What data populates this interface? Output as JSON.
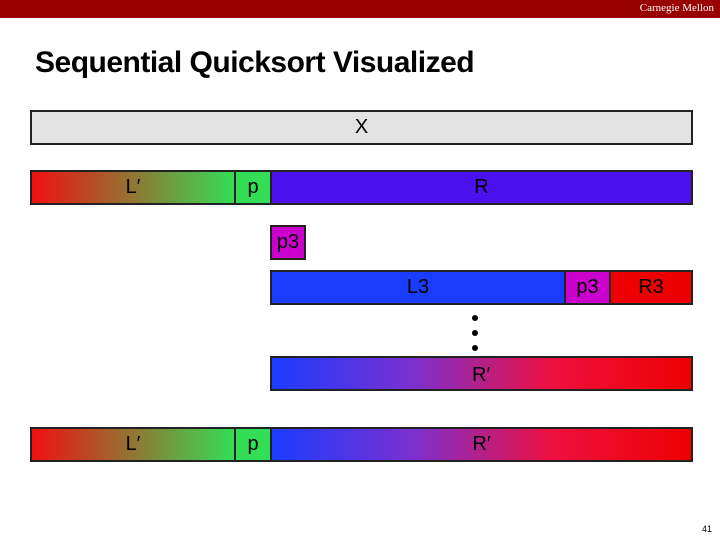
{
  "header": {
    "org": "Carnegie Mellon"
  },
  "title": "Sequential Quicksort Visualized",
  "rows": [
    {
      "segments": [
        "X"
      ]
    },
    {
      "segments": [
        "L′",
        "p",
        "R"
      ]
    },
    {
      "segments": [
        "p3"
      ]
    },
    {
      "segments": [
        "L3",
        "p3",
        "R3"
      ]
    },
    {
      "segments": [
        "R′"
      ]
    },
    {
      "segments": [
        "L′",
        "p",
        "R′"
      ]
    }
  ],
  "page_number": "41"
}
